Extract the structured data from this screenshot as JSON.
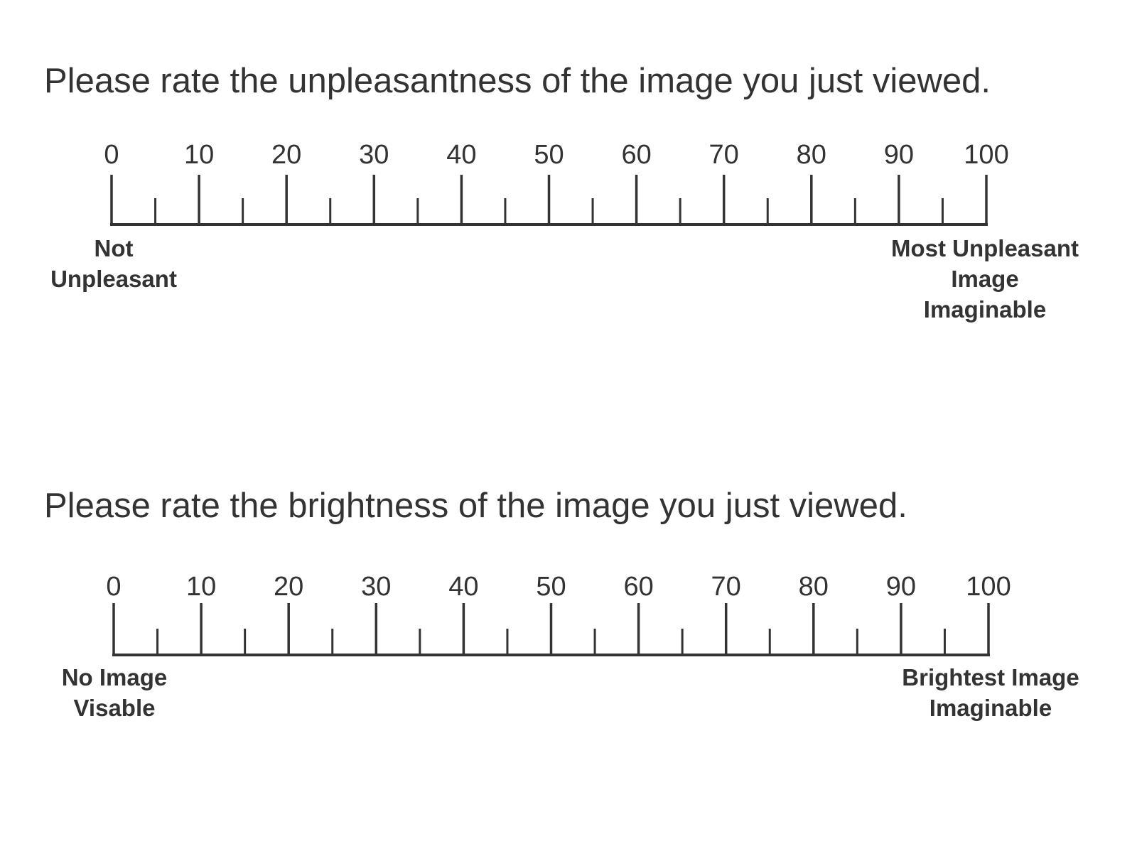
{
  "scales": [
    {
      "prompt": "Please rate the unpleasantness of the image you just viewed.",
      "ticks": [
        "0",
        "10",
        "20",
        "30",
        "40",
        "50",
        "60",
        "70",
        "80",
        "90",
        "100"
      ],
      "min": 0,
      "max": 100,
      "minor_step": 5,
      "low_anchor": {
        "line1": "Not",
        "line2": "Unpleasant",
        "line3": ""
      },
      "high_anchor": {
        "line1": "Most Unpleasant",
        "line2": "Image",
        "line3": "Imaginable"
      }
    },
    {
      "prompt": "Please rate the brightness of the image you just viewed.",
      "ticks": [
        "0",
        "10",
        "20",
        "30",
        "40",
        "50",
        "60",
        "70",
        "80",
        "90",
        "100"
      ],
      "min": 0,
      "max": 100,
      "minor_step": 5,
      "low_anchor": {
        "line1": "No Image",
        "line2": "Visable",
        "line3": ""
      },
      "high_anchor": {
        "line1": "Brightest Image",
        "line2": "Imaginable",
        "line3": ""
      }
    }
  ],
  "colors": {
    "ink": "#333333",
    "background": "#ffffff"
  }
}
